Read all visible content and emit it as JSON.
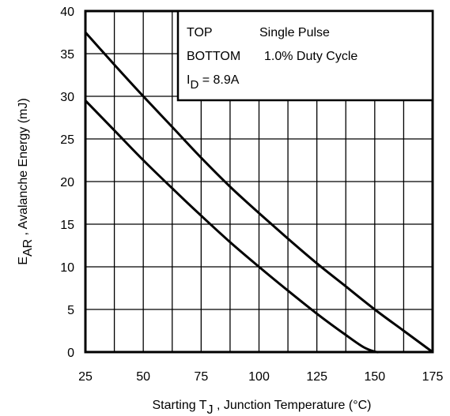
{
  "chart_data": {
    "type": "line",
    "xlabel": {
      "prefix": "Starting T",
      "sub": "J",
      "suffix": " , Junction Temperature (°C)"
    },
    "ylabel": {
      "prefix": "E",
      "sub": "AR",
      "suffix": " , Avalanche Energy (mJ)"
    },
    "xlim": [
      25,
      175
    ],
    "ylim": [
      0,
      40
    ],
    "xticks": [
      25,
      50,
      75,
      100,
      125,
      150,
      175
    ],
    "yticks": [
      0,
      5,
      10,
      15,
      20,
      25,
      30,
      35,
      40
    ],
    "x_minor_step": 12.5,
    "y_minor_step": 5,
    "grid": true,
    "legend": {
      "position": "top-right",
      "lines": [
        {
          "label": "TOP",
          "value": "Single Pulse"
        },
        {
          "label": "BOTTOM",
          "value": "1.0% Duty Cycle"
        }
      ],
      "condition": {
        "prefix": "I",
        "sub": "D",
        "suffix": " = 8.9A"
      }
    },
    "series": [
      {
        "name": "Single Pulse",
        "x": [
          25,
          37.5,
          50,
          62.5,
          75,
          87.5,
          100,
          112.5,
          125,
          137.5,
          150,
          162.5,
          175
        ],
        "y": [
          37.5,
          33.7,
          30.0,
          26.4,
          22.8,
          19.4,
          16.3,
          13.3,
          10.4,
          7.7,
          5.0,
          2.5,
          0
        ]
      },
      {
        "name": "1.0% Duty Cycle",
        "x": [
          25,
          37.5,
          50,
          62.5,
          75,
          87.5,
          100,
          112.5,
          125,
          137.5,
          145,
          150,
          152
        ],
        "y": [
          29.5,
          26.0,
          22.5,
          19.2,
          16.0,
          12.9,
          10.0,
          7.2,
          4.5,
          2.0,
          0.6,
          0.05,
          0
        ]
      }
    ]
  }
}
